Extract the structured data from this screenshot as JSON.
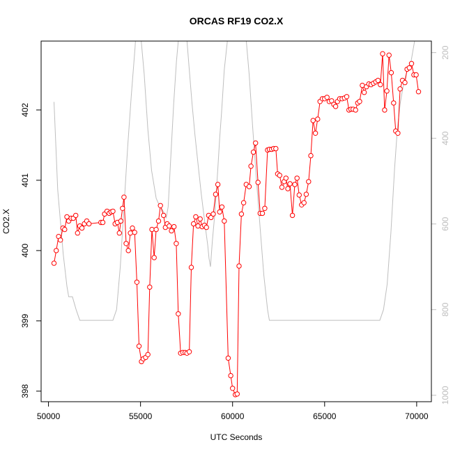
{
  "chart_data": {
    "type": "line",
    "title": "ORCAS RF19 CO2.X",
    "xlabel": "UTC Seconds",
    "ylabel": "CO2.X",
    "xlim": [
      49600,
      70800
    ],
    "ylim": [
      397.85,
      402.98
    ],
    "y2lim": [
      1015,
      173
    ],
    "x_ticks": [
      50000,
      55000,
      60000,
      65000,
      70000
    ],
    "x_tick_labels": [
      "50000",
      "55000",
      "60000",
      "65000",
      "70000"
    ],
    "y_ticks": [
      398,
      399,
      400,
      401,
      402
    ],
    "y_tick_labels": [
      "398",
      "399",
      "400",
      "401",
      "402"
    ],
    "y2_ticks": [
      200,
      400,
      600,
      800,
      1000
    ],
    "y2_tick_labels": [
      "200",
      "400",
      "600",
      "800",
      "1000"
    ],
    "grid": false,
    "colors": {
      "co2": "#ff0000",
      "pressure": "#bebebe"
    },
    "series": [
      {
        "axis": "left",
        "points": [
          [
            50300,
            399.82
          ],
          [
            50420,
            400.0
          ],
          [
            50550,
            400.2
          ],
          [
            50650,
            400.15
          ],
          [
            50780,
            400.32
          ],
          [
            50880,
            400.3
          ],
          [
            51000,
            400.48
          ],
          [
            51100,
            400.42
          ],
          [
            51230,
            400.46
          ],
          [
            51350,
            400.46
          ],
          [
            51480,
            400.5
          ],
          [
            51580,
            400.25
          ],
          [
            51700,
            400.35
          ],
          [
            51820,
            400.32
          ],
          [
            51950,
            400.38
          ],
          [
            52080,
            400.42
          ],
          [
            52200,
            400.38
          ],
          [
            52850,
            400.4
          ],
          [
            52950,
            400.4
          ],
          [
            53050,
            400.52
          ],
          [
            53180,
            400.56
          ],
          [
            53300,
            400.53
          ],
          [
            53400,
            400.55
          ],
          [
            53500,
            400.56
          ],
          [
            53620,
            400.38
          ],
          [
            53740,
            400.4
          ],
          [
            53850,
            400.25
          ],
          [
            53930,
            400.42
          ],
          [
            54020,
            400.6
          ],
          [
            54100,
            400.76
          ],
          [
            54220,
            400.1
          ],
          [
            54340,
            400.0
          ],
          [
            54450,
            400.25
          ],
          [
            54560,
            400.32
          ],
          [
            54680,
            400.26
          ],
          [
            54800,
            399.55
          ],
          [
            54920,
            398.64
          ],
          [
            55050,
            398.42
          ],
          [
            55150,
            398.46
          ],
          [
            55280,
            398.48
          ],
          [
            55400,
            398.52
          ],
          [
            55500,
            399.48
          ],
          [
            55620,
            400.3
          ],
          [
            55740,
            399.9
          ],
          [
            55850,
            400.3
          ],
          [
            55980,
            400.42
          ],
          [
            56080,
            400.64
          ],
          [
            56250,
            400.5
          ],
          [
            56350,
            400.33
          ],
          [
            56450,
            400.38
          ],
          [
            56560,
            400.35
          ],
          [
            56680,
            400.28
          ],
          [
            56820,
            400.34
          ],
          [
            56940,
            400.1
          ],
          [
            57050,
            399.1
          ],
          [
            57180,
            398.54
          ],
          [
            57300,
            398.55
          ],
          [
            57420,
            398.55
          ],
          [
            57520,
            398.54
          ],
          [
            57650,
            398.56
          ],
          [
            57760,
            399.76
          ],
          [
            57880,
            400.38
          ],
          [
            58000,
            400.48
          ],
          [
            58120,
            400.35
          ],
          [
            58240,
            400.45
          ],
          [
            58350,
            400.34
          ],
          [
            58470,
            400.36
          ],
          [
            58580,
            400.33
          ],
          [
            58700,
            400.5
          ],
          [
            58830,
            400.47
          ],
          [
            58950,
            400.52
          ],
          [
            59080,
            400.8
          ],
          [
            59200,
            400.94
          ],
          [
            59300,
            400.55
          ],
          [
            59420,
            400.62
          ],
          [
            59550,
            400.42
          ],
          [
            59760,
            398.47
          ],
          [
            59900,
            398.22
          ],
          [
            60000,
            398.04
          ],
          [
            60150,
            397.95
          ],
          [
            60250,
            397.96
          ],
          [
            60350,
            399.78
          ],
          [
            60480,
            400.52
          ],
          [
            60600,
            400.68
          ],
          [
            60740,
            400.94
          ],
          [
            60900,
            400.91
          ],
          [
            61000,
            401.2
          ],
          [
            61130,
            401.4
          ],
          [
            61250,
            401.53
          ],
          [
            61380,
            400.97
          ],
          [
            61500,
            400.53
          ],
          [
            61620,
            400.53
          ],
          [
            61750,
            400.6
          ],
          [
            61900,
            401.43
          ],
          [
            62000,
            401.44
          ],
          [
            62120,
            401.44
          ],
          [
            62230,
            401.45
          ],
          [
            62350,
            401.45
          ],
          [
            62450,
            401.09
          ],
          [
            62560,
            401.07
          ],
          [
            62680,
            400.9
          ],
          [
            62800,
            400.98
          ],
          [
            62900,
            401.03
          ],
          [
            63000,
            400.88
          ],
          [
            63120,
            400.95
          ],
          [
            63250,
            400.5
          ],
          [
            63380,
            400.94
          ],
          [
            63500,
            401.03
          ],
          [
            63620,
            400.79
          ],
          [
            63750,
            400.65
          ],
          [
            63880,
            400.68
          ],
          [
            64000,
            400.8
          ],
          [
            64130,
            400.98
          ],
          [
            64250,
            401.35
          ],
          [
            64370,
            401.85
          ],
          [
            64500,
            401.67
          ],
          [
            64620,
            401.87
          ],
          [
            64750,
            402.12
          ],
          [
            64880,
            402.16
          ],
          [
            65000,
            402.16
          ],
          [
            65130,
            402.18
          ],
          [
            65250,
            402.12
          ],
          [
            65380,
            402.13
          ],
          [
            65500,
            402.08
          ],
          [
            65600,
            402.05
          ],
          [
            65700,
            402.12
          ],
          [
            65820,
            402.16
          ],
          [
            65950,
            402.16
          ],
          [
            66080,
            402.17
          ],
          [
            66200,
            402.19
          ],
          [
            66320,
            402.0
          ],
          [
            66430,
            402.01
          ],
          [
            66550,
            402.01
          ],
          [
            66680,
            402.0
          ],
          [
            66800,
            402.1
          ],
          [
            66900,
            402.12
          ],
          [
            67050,
            402.35
          ],
          [
            67150,
            402.25
          ],
          [
            67270,
            402.33
          ],
          [
            67400,
            402.37
          ],
          [
            67520,
            402.36
          ],
          [
            67650,
            402.38
          ],
          [
            67780,
            402.4
          ],
          [
            67900,
            402.42
          ],
          [
            68030,
            402.36
          ],
          [
            68150,
            402.8
          ],
          [
            68260,
            402.0
          ],
          [
            68380,
            402.27
          ],
          [
            68500,
            402.78
          ],
          [
            68620,
            402.53
          ],
          [
            68750,
            402.1
          ],
          [
            68860,
            401.7
          ],
          [
            68980,
            401.67
          ],
          [
            69100,
            402.3
          ],
          [
            69230,
            402.42
          ],
          [
            69360,
            402.39
          ],
          [
            69480,
            402.58
          ],
          [
            69600,
            402.6
          ],
          [
            69720,
            402.66
          ],
          [
            69850,
            402.5
          ],
          [
            69970,
            402.5
          ],
          [
            70100,
            402.26
          ]
        ]
      },
      {
        "axis": "right",
        "points": [
          [
            50300,
            315
          ],
          [
            50500,
            520
          ],
          [
            50800,
            670
          ],
          [
            51000,
            745
          ],
          [
            51100,
            770
          ],
          [
            51300,
            770
          ],
          [
            51500,
            800
          ],
          [
            51700,
            825
          ],
          [
            53500,
            825
          ],
          [
            53700,
            800
          ],
          [
            53900,
            700
          ],
          [
            54100,
            560
          ],
          [
            54300,
            420
          ],
          [
            54500,
            300
          ],
          [
            54700,
            190
          ],
          [
            54800,
            120
          ],
          [
            54950,
            130
          ],
          [
            55200,
            250
          ],
          [
            55400,
            380
          ],
          [
            55600,
            475
          ],
          [
            55850,
            540
          ],
          [
            56000,
            555
          ],
          [
            56100,
            560
          ],
          [
            56200,
            568
          ],
          [
            56300,
            575
          ],
          [
            56400,
            585
          ],
          [
            56500,
            560
          ],
          [
            56650,
            440
          ],
          [
            56800,
            320
          ],
          [
            56950,
            220
          ],
          [
            57100,
            150
          ],
          [
            57350,
            140
          ],
          [
            57500,
            160
          ],
          [
            57650,
            240
          ],
          [
            57800,
            320
          ],
          [
            57950,
            390
          ],
          [
            58100,
            450
          ],
          [
            58300,
            530
          ],
          [
            58500,
            600
          ],
          [
            58650,
            650
          ],
          [
            58720,
            680
          ],
          [
            58800,
            700
          ],
          [
            58900,
            640
          ],
          [
            59050,
            570
          ],
          [
            59200,
            470
          ],
          [
            59300,
            400
          ],
          [
            59400,
            340
          ],
          [
            59550,
            240
          ],
          [
            59750,
            160
          ],
          [
            59900,
            130
          ],
          [
            60500,
            130
          ],
          [
            60700,
            150
          ],
          [
            60900,
            250
          ],
          [
            61100,
            380
          ],
          [
            61300,
            500
          ],
          [
            61500,
            610
          ],
          [
            61700,
            720
          ],
          [
            61900,
            800
          ],
          [
            62000,
            825
          ],
          [
            68000,
            825
          ],
          [
            68200,
            800
          ],
          [
            68400,
            740
          ],
          [
            68600,
            620
          ],
          [
            68800,
            470
          ],
          [
            68950,
            380
          ],
          [
            69100,
            320
          ],
          [
            69300,
            270
          ],
          [
            69500,
            240
          ],
          [
            69700,
            220
          ],
          [
            69900,
            170
          ],
          [
            70000,
            130
          ]
        ]
      }
    ]
  }
}
